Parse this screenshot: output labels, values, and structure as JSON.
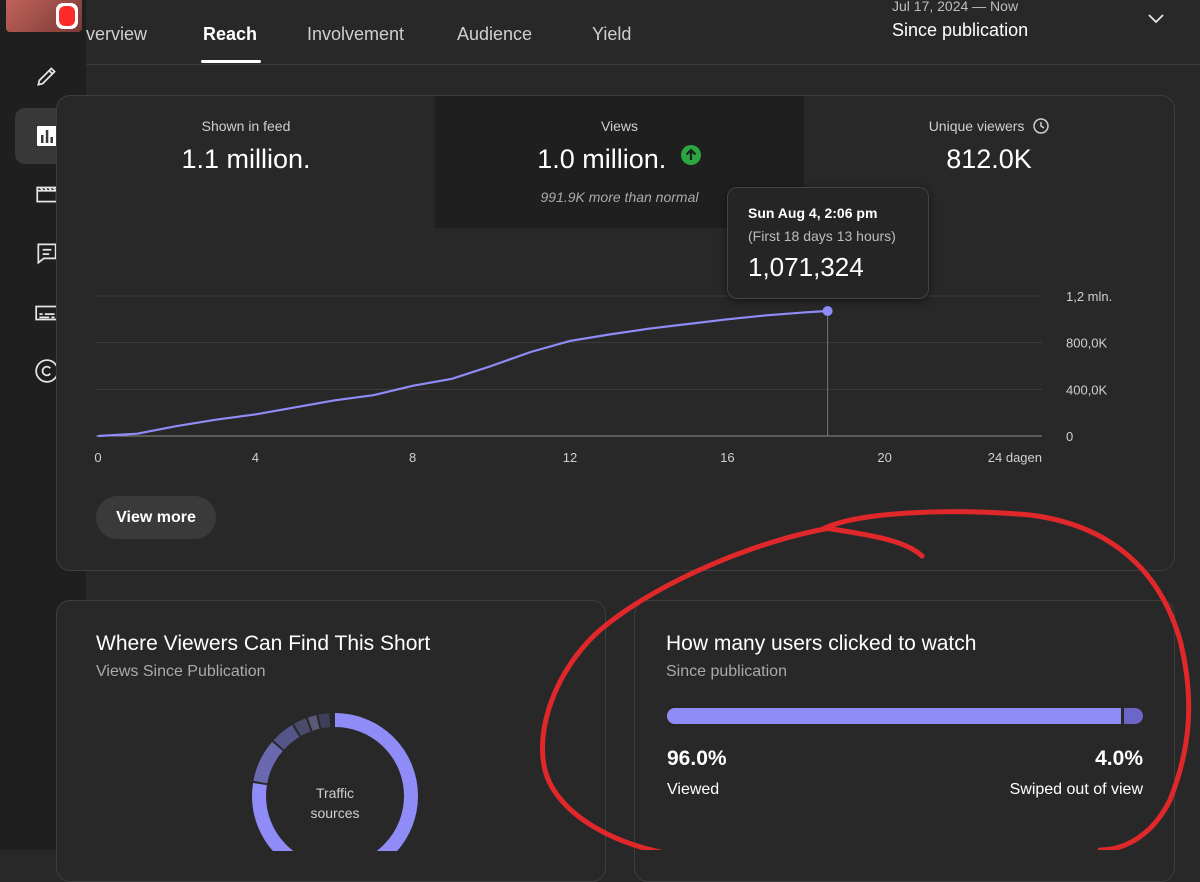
{
  "tabs": [
    {
      "label": "verview",
      "active": false
    },
    {
      "label": "Reach",
      "active": true
    },
    {
      "label": "Involvement",
      "active": false
    },
    {
      "label": "Audience",
      "active": false
    },
    {
      "label": "Yield",
      "active": false
    }
  ],
  "date_selector": {
    "range": "Jul 17, 2024 — Now",
    "period": "Since publication",
    "icon": "chevron-down-icon"
  },
  "sidebar_icons": [
    "pencil-icon",
    "analytics-icon",
    "editor-icon",
    "comments-icon",
    "subtitles-icon",
    "copyright-icon"
  ],
  "metrics": [
    {
      "label": "Shown in feed",
      "value": "1.1 million."
    },
    {
      "label": "Views",
      "value": "1.0 million.",
      "note": "991.9K more than normal",
      "trend": "up",
      "trend_color": "#2ba640"
    },
    {
      "label": "Unique viewers",
      "value": "812.0K",
      "icon": "clock-icon"
    }
  ],
  "tooltip": {
    "date": "Sun Aug 4, 2:06 pm",
    "range": "(First 18 days 13 hours)",
    "value": "1,071,324"
  },
  "chart_data": {
    "type": "line",
    "series": [
      {
        "x": [
          0,
          1,
          2,
          3,
          4,
          5,
          6,
          7,
          8,
          9,
          10,
          11,
          12,
          13,
          14,
          15,
          16,
          17,
          18,
          18.55
        ],
        "y": [
          0,
          20000,
          85000,
          140000,
          185000,
          245000,
          305000,
          350000,
          430000,
          490000,
          600000,
          720000,
          815000,
          870000,
          920000,
          960000,
          1000000,
          1035000,
          1060000,
          1071324
        ]
      }
    ],
    "x_ticks": [
      "0",
      "4",
      "8",
      "12",
      "16",
      "20",
      "24 dagen"
    ],
    "x_tick_values": [
      0,
      4,
      8,
      12,
      16,
      20,
      24
    ],
    "y_ticks": [
      "0",
      "400,0K",
      "800,0K",
      "1,2 mln."
    ],
    "y_tick_values": [
      0,
      400000,
      800000,
      1200000
    ],
    "xlim": [
      0,
      24
    ],
    "ylim": [
      0,
      1200000
    ],
    "line_color": "#8f8cf7",
    "grid": true
  },
  "view_more_label": "View more",
  "traffic_card": {
    "title": "Where Viewers Can Find This Short",
    "subtitle": "Views Since Publication",
    "donut_label": "Traffic sources",
    "primary_color": "#8f8cf7"
  },
  "clicks_card": {
    "title": "How many users clicked to watch",
    "subtitle": "Since publication",
    "viewed_pct": "96.0%",
    "viewed_label": "Viewed",
    "swiped_pct": "4.0%",
    "swiped_label": "Swiped out of view",
    "viewed_fraction": 0.96,
    "bar_color": "#8f8cf7",
    "annotation_color": "#e0282b"
  }
}
